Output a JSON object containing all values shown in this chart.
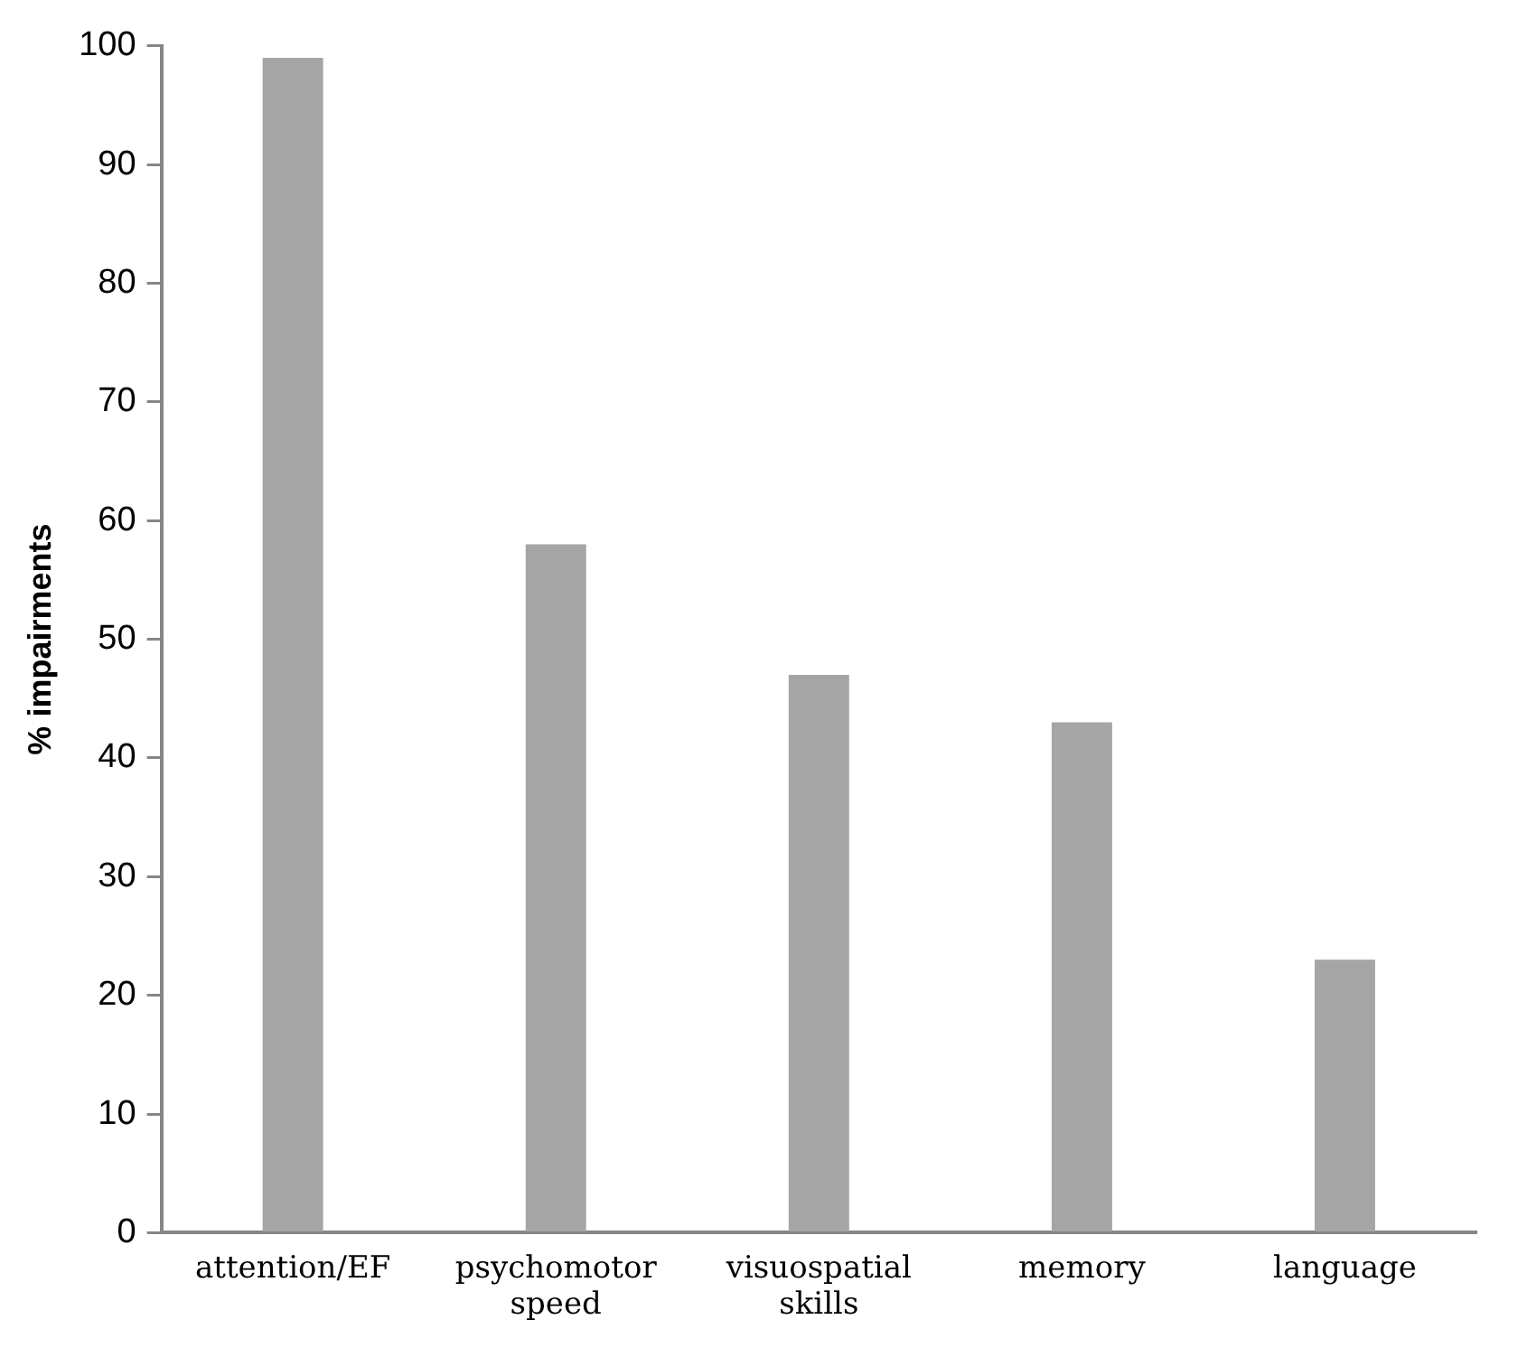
{
  "chart_data": {
    "type": "bar",
    "ylabel": "% impairments",
    "categories": [
      "attention/EF",
      "psychomotor speed",
      "visuospatial skills",
      "memory",
      "language"
    ],
    "values": [
      99,
      58,
      47,
      43,
      23
    ],
    "color": "#a5a5a5",
    "ylim": [
      0,
      100
    ],
    "yticks": [
      0,
      10,
      20,
      30,
      40,
      50,
      60,
      70,
      80,
      90,
      100
    ],
    "grid": false,
    "legend": false
  }
}
